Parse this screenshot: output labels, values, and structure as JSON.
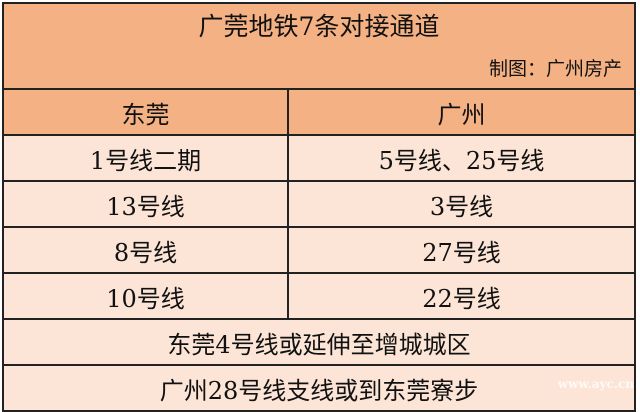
{
  "title": "广莞地铁7条对接通道",
  "credit": "制图：广州房产",
  "headers": [
    "东莞",
    "广州"
  ],
  "rows": [
    [
      "1号线二期",
      "5号线、25号线"
    ],
    [
      "13号线",
      "3号线"
    ],
    [
      "8号线",
      "27号线"
    ],
    [
      "10号线",
      "22号线"
    ]
  ],
  "notes": [
    "东莞4号线或延伸至增城城区",
    "广州28号线支线或到东莞寮步"
  ],
  "watermark": "www.ayc.cn",
  "colors": {
    "header": "#f4b183",
    "cell": "#fce4d6"
  }
}
